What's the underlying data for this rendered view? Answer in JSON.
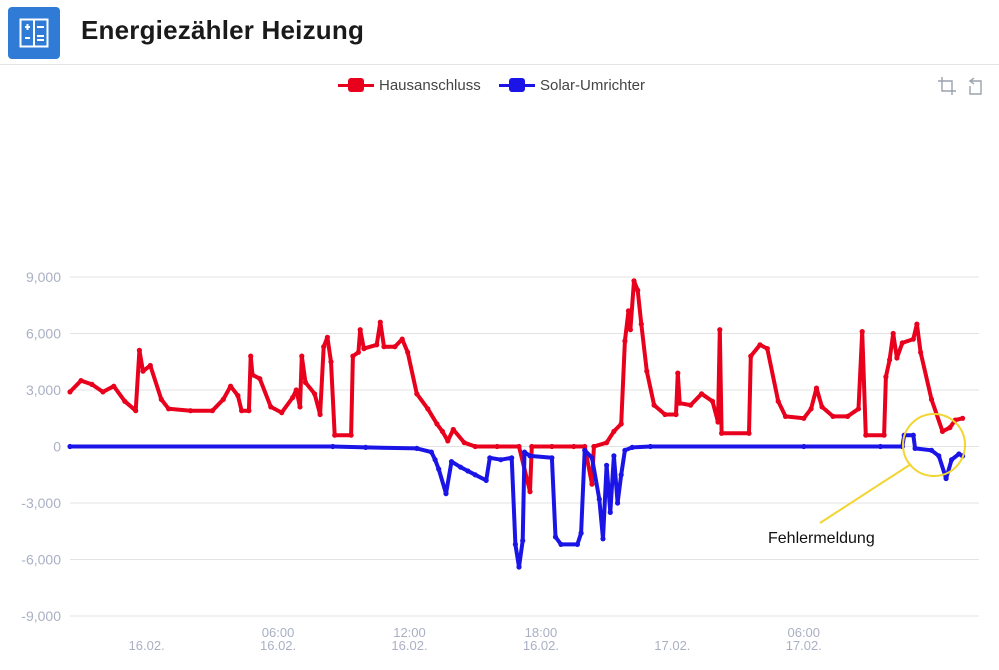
{
  "header": {
    "title": "Energiezähler Heizung",
    "icon": "calculator-icon",
    "icon_color": "#2f7bd6"
  },
  "toolbar": {
    "zoom_icon": "zoom-select-icon",
    "reset_icon": "zoom-reset-icon"
  },
  "annotation": {
    "label": "Fehlermeldung",
    "color": "#f2d531"
  },
  "chart_data": {
    "type": "line",
    "title": "",
    "xlabel": "",
    "ylabel": "",
    "ylim": [
      -9000,
      9000
    ],
    "yticks": [
      9000,
      6000,
      3000,
      0,
      -3000,
      -6000,
      -9000
    ],
    "ytick_labels": [
      "9,000",
      "6,000",
      "3,000",
      "0",
      "-3,000",
      "-6,000",
      "-9,000"
    ],
    "xlim": [
      "2023-02-15T20:30",
      "2023-02-17T14:00"
    ],
    "xticks": [
      {
        "at": "2023-02-16T00:00",
        "line1": "",
        "line2": "16.02."
      },
      {
        "at": "2023-02-16T06:00",
        "line1": "06:00",
        "line2": "16.02."
      },
      {
        "at": "2023-02-16T12:00",
        "line1": "12:00",
        "line2": "16.02."
      },
      {
        "at": "2023-02-16T18:00",
        "line1": "18:00",
        "line2": "16.02."
      },
      {
        "at": "2023-02-17T00:00",
        "line1": "",
        "line2": "17.02."
      },
      {
        "at": "2023-02-17T06:00",
        "line1": "06:00",
        "line2": "17.02."
      }
    ],
    "grid": true,
    "legend": "top-center",
    "series": [
      {
        "name": "Hausanschluss",
        "color": "#e8001c",
        "points": [
          [
            "2023-02-15T20:30",
            2900
          ],
          [
            "2023-02-15T21:00",
            3500
          ],
          [
            "2023-02-15T21:30",
            3300
          ],
          [
            "2023-02-15T22:00",
            2900
          ],
          [
            "2023-02-15T22:30",
            3200
          ],
          [
            "2023-02-15T23:00",
            2400
          ],
          [
            "2023-02-15T23:30",
            1900
          ],
          [
            "2023-02-15T23:40",
            5100
          ],
          [
            "2023-02-15T23:50",
            4000
          ],
          [
            "2023-02-16T00:10",
            4300
          ],
          [
            "2023-02-16T00:40",
            2500
          ],
          [
            "2023-02-16T01:00",
            2000
          ],
          [
            "2023-02-16T02:00",
            1900
          ],
          [
            "2023-02-16T03:00",
            1900
          ],
          [
            "2023-02-16T03:30",
            2500
          ],
          [
            "2023-02-16T03:50",
            3200
          ],
          [
            "2023-02-16T04:10",
            2700
          ],
          [
            "2023-02-16T04:20",
            1900
          ],
          [
            "2023-02-16T04:40",
            1900
          ],
          [
            "2023-02-16T04:45",
            4800
          ],
          [
            "2023-02-16T04:50",
            3800
          ],
          [
            "2023-02-16T05:10",
            3600
          ],
          [
            "2023-02-16T05:40",
            2100
          ],
          [
            "2023-02-16T06:10",
            1800
          ],
          [
            "2023-02-16T06:40",
            2600
          ],
          [
            "2023-02-16T06:50",
            3000
          ],
          [
            "2023-02-16T07:00",
            2100
          ],
          [
            "2023-02-16T07:05",
            4800
          ],
          [
            "2023-02-16T07:15",
            3400
          ],
          [
            "2023-02-16T07:40",
            2800
          ],
          [
            "2023-02-16T07:55",
            1700
          ],
          [
            "2023-02-16T08:05",
            5300
          ],
          [
            "2023-02-16T08:15",
            5800
          ],
          [
            "2023-02-16T08:25",
            4500
          ],
          [
            "2023-02-16T08:35",
            600
          ],
          [
            "2023-02-16T09:20",
            600
          ],
          [
            "2023-02-16T09:25",
            4800
          ],
          [
            "2023-02-16T09:40",
            5000
          ],
          [
            "2023-02-16T09:45",
            6200
          ],
          [
            "2023-02-16T09:55",
            5200
          ],
          [
            "2023-02-16T10:30",
            5400
          ],
          [
            "2023-02-16T10:40",
            6600
          ],
          [
            "2023-02-16T10:50",
            5300
          ],
          [
            "2023-02-16T11:20",
            5300
          ],
          [
            "2023-02-16T11:40",
            5700
          ],
          [
            "2023-02-16T11:55",
            5000
          ],
          [
            "2023-02-16T12:20",
            2800
          ],
          [
            "2023-02-16T12:50",
            2000
          ],
          [
            "2023-02-16T13:15",
            1200
          ],
          [
            "2023-02-16T13:30",
            800
          ],
          [
            "2023-02-16T13:45",
            300
          ],
          [
            "2023-02-16T14:00",
            900
          ],
          [
            "2023-02-16T14:30",
            200
          ],
          [
            "2023-02-16T15:00",
            0
          ],
          [
            "2023-02-16T16:00",
            0
          ],
          [
            "2023-02-16T17:00",
            0
          ],
          [
            "2023-02-16T17:30",
            -2400
          ],
          [
            "2023-02-16T17:35",
            0
          ],
          [
            "2023-02-16T18:30",
            0
          ],
          [
            "2023-02-16T19:30",
            0
          ],
          [
            "2023-02-16T20:00",
            0
          ],
          [
            "2023-02-16T20:20",
            -2000
          ],
          [
            "2023-02-16T20:25",
            0
          ],
          [
            "2023-02-16T21:00",
            200
          ],
          [
            "2023-02-16T21:20",
            800
          ],
          [
            "2023-02-16T21:40",
            1200
          ],
          [
            "2023-02-16T21:50",
            5600
          ],
          [
            "2023-02-16T22:00",
            7200
          ],
          [
            "2023-02-16T22:05",
            6200
          ],
          [
            "2023-02-16T22:15",
            8800
          ],
          [
            "2023-02-16T22:25",
            8300
          ],
          [
            "2023-02-16T22:35",
            6500
          ],
          [
            "2023-02-16T22:50",
            4000
          ],
          [
            "2023-02-16T23:10",
            2200
          ],
          [
            "2023-02-16T23:40",
            1700
          ],
          [
            "2023-02-17T00:10",
            1700
          ],
          [
            "2023-02-17T00:15",
            3900
          ],
          [
            "2023-02-17T00:20",
            2300
          ],
          [
            "2023-02-17T00:50",
            2200
          ],
          [
            "2023-02-17T01:20",
            2800
          ],
          [
            "2023-02-17T01:50",
            2400
          ],
          [
            "2023-02-17T02:05",
            1300
          ],
          [
            "2023-02-17T02:10",
            6200
          ],
          [
            "2023-02-17T02:15",
            700
          ],
          [
            "2023-02-17T03:30",
            700
          ],
          [
            "2023-02-17T03:35",
            4800
          ],
          [
            "2023-02-17T04:00",
            5400
          ],
          [
            "2023-02-17T04:20",
            5200
          ],
          [
            "2023-02-17T04:50",
            2400
          ],
          [
            "2023-02-17T05:10",
            1600
          ],
          [
            "2023-02-17T06:00",
            1500
          ],
          [
            "2023-02-17T06:20",
            2000
          ],
          [
            "2023-02-17T06:35",
            3100
          ],
          [
            "2023-02-17T06:50",
            2100
          ],
          [
            "2023-02-17T07:20",
            1600
          ],
          [
            "2023-02-17T08:00",
            1600
          ],
          [
            "2023-02-17T08:30",
            2000
          ],
          [
            "2023-02-17T08:40",
            6100
          ],
          [
            "2023-02-17T08:50",
            600
          ],
          [
            "2023-02-17T09:40",
            600
          ],
          [
            "2023-02-17T09:45",
            3700
          ],
          [
            "2023-02-17T09:55",
            4600
          ],
          [
            "2023-02-17T10:05",
            6000
          ],
          [
            "2023-02-17T10:15",
            4700
          ],
          [
            "2023-02-17T10:30",
            5500
          ],
          [
            "2023-02-17T11:00",
            5700
          ],
          [
            "2023-02-17T11:10",
            6500
          ],
          [
            "2023-02-17T11:20",
            5000
          ],
          [
            "2023-02-17T11:50",
            2500
          ],
          [
            "2023-02-17T12:20",
            800
          ],
          [
            "2023-02-17T12:40",
            1000
          ],
          [
            "2023-02-17T12:55",
            1400
          ],
          [
            "2023-02-17T13:15",
            1500
          ]
        ]
      },
      {
        "name": "Solar-Umrichter",
        "color": "#1a15e6",
        "points": [
          [
            "2023-02-15T20:30",
            0
          ],
          [
            "2023-02-16T08:30",
            0
          ],
          [
            "2023-02-16T10:00",
            -50
          ],
          [
            "2023-02-16T12:20",
            -100
          ],
          [
            "2023-02-16T13:00",
            -300
          ],
          [
            "2023-02-16T13:10",
            -700
          ],
          [
            "2023-02-16T13:20",
            -1200
          ],
          [
            "2023-02-16T13:40",
            -2500
          ],
          [
            "2023-02-16T13:55",
            -800
          ],
          [
            "2023-02-16T14:20",
            -1100
          ],
          [
            "2023-02-16T14:40",
            -1300
          ],
          [
            "2023-02-16T15:00",
            -1500
          ],
          [
            "2023-02-16T15:30",
            -1800
          ],
          [
            "2023-02-16T15:40",
            -600
          ],
          [
            "2023-02-16T16:10",
            -700
          ],
          [
            "2023-02-16T16:40",
            -600
          ],
          [
            "2023-02-16T16:50",
            -5200
          ],
          [
            "2023-02-16T17:00",
            -6400
          ],
          [
            "2023-02-16T17:10",
            -5000
          ],
          [
            "2023-02-16T17:15",
            -300
          ],
          [
            "2023-02-16T17:30",
            -500
          ],
          [
            "2023-02-16T18:30",
            -600
          ],
          [
            "2023-02-16T18:40",
            -4800
          ],
          [
            "2023-02-16T18:55",
            -5200
          ],
          [
            "2023-02-16T19:40",
            -5200
          ],
          [
            "2023-02-16T19:50",
            -4600
          ],
          [
            "2023-02-16T20:00",
            -200
          ],
          [
            "2023-02-16T20:20",
            -600
          ],
          [
            "2023-02-16T20:40",
            -2800
          ],
          [
            "2023-02-16T20:50",
            -4900
          ],
          [
            "2023-02-16T21:00",
            -1000
          ],
          [
            "2023-02-16T21:10",
            -3500
          ],
          [
            "2023-02-16T21:20",
            -500
          ],
          [
            "2023-02-16T21:30",
            -3000
          ],
          [
            "2023-02-16T21:40",
            -1500
          ],
          [
            "2023-02-16T21:50",
            -200
          ],
          [
            "2023-02-16T22:10",
            -50
          ],
          [
            "2023-02-16T23:00",
            0
          ],
          [
            "2023-02-17T06:00",
            0
          ],
          [
            "2023-02-17T09:30",
            0
          ],
          [
            "2023-02-17T10:30",
            0
          ],
          [
            "2023-02-17T10:35",
            600
          ],
          [
            "2023-02-17T11:00",
            600
          ],
          [
            "2023-02-17T11:05",
            -100
          ],
          [
            "2023-02-17T11:50",
            -200
          ],
          [
            "2023-02-17T12:10",
            -500
          ],
          [
            "2023-02-17T12:30",
            -1700
          ],
          [
            "2023-02-17T12:45",
            -700
          ],
          [
            "2023-02-17T13:05",
            -400
          ],
          [
            "2023-02-17T13:15",
            -500
          ]
        ]
      }
    ]
  }
}
